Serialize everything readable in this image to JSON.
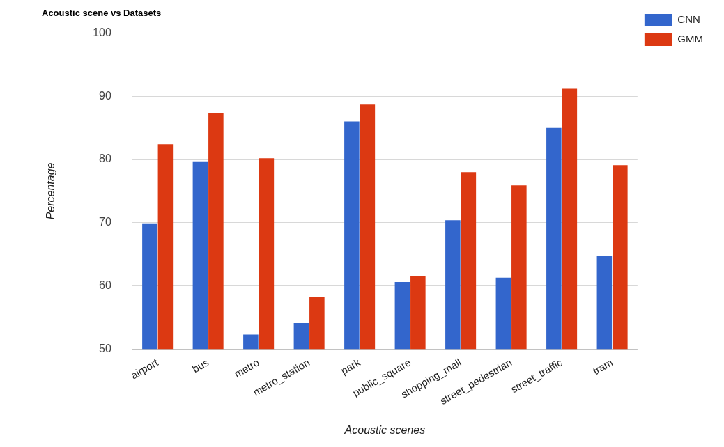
{
  "chart_data": {
    "type": "bar",
    "title": "Acoustic scene vs Datasets",
    "xlabel": "Acoustic scenes",
    "ylabel": "Percentage",
    "categories": [
      "airport",
      "bus",
      "metro",
      "metro_station",
      "park",
      "public_square",
      "shopping_mall",
      "street_pedestrian",
      "street_traffic",
      "tram"
    ],
    "series": [
      {
        "name": "CNN",
        "color": "#3366cc",
        "values": [
          69.9,
          79.7,
          52.3,
          54.1,
          86.0,
          60.6,
          70.4,
          61.3,
          85.0,
          64.7
        ]
      },
      {
        "name": "GMM",
        "color": "#dc3912",
        "values": [
          82.4,
          87.3,
          80.2,
          58.2,
          88.7,
          61.6,
          78.0,
          75.9,
          91.2,
          79.1
        ]
      }
    ],
    "ylim": [
      50,
      100
    ],
    "yticks": [
      50,
      60,
      70,
      80,
      90,
      100
    ],
    "grid": "y",
    "legend": "top right"
  }
}
